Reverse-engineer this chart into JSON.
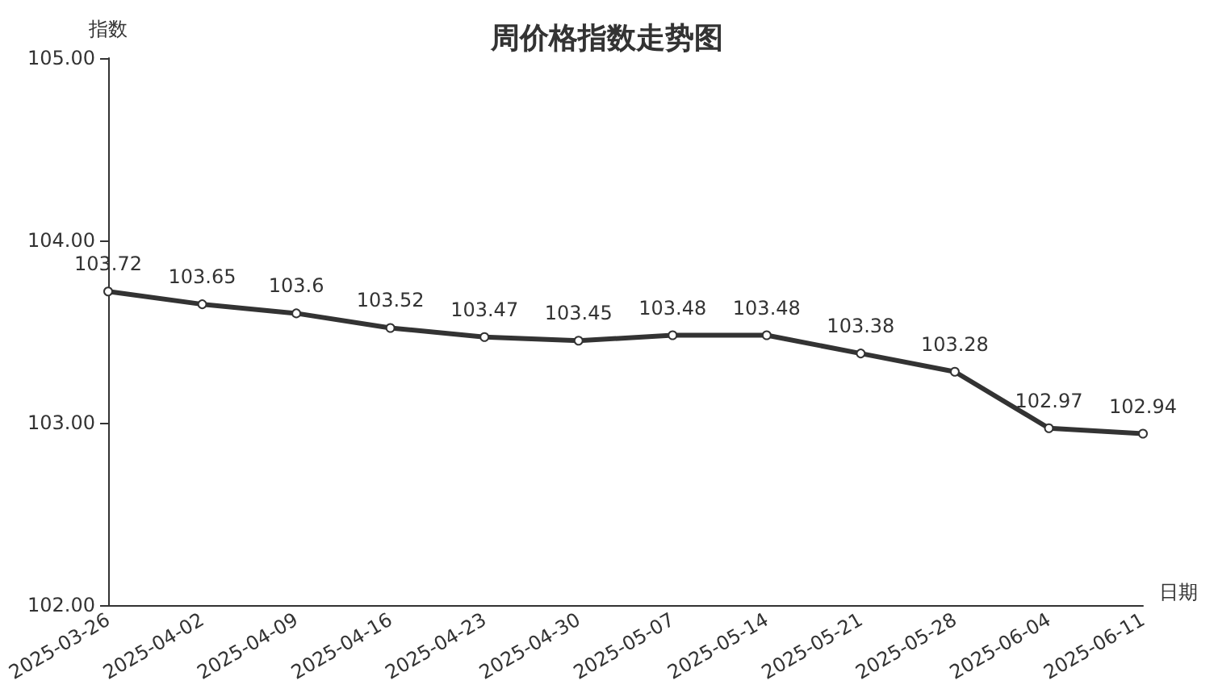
{
  "chart_data": {
    "type": "line",
    "title": "周价格指数走势图",
    "xlabel": "日期",
    "ylabel": "指数",
    "categories": [
      "2025-03-26",
      "2025-04-02",
      "2025-04-09",
      "2025-04-16",
      "2025-04-23",
      "2025-04-30",
      "2025-05-07",
      "2025-05-14",
      "2025-05-21",
      "2025-05-28",
      "2025-06-04",
      "2025-06-11"
    ],
    "series": [
      {
        "color": "#333333",
        "values": [
          103.72,
          103.65,
          103.6,
          103.52,
          103.47,
          103.45,
          103.48,
          103.48,
          103.38,
          103.28,
          102.97,
          102.94
        ]
      }
    ],
    "ylim": [
      102,
      105
    ],
    "yticks": [
      {
        "value": 102,
        "label": "102.00"
      },
      {
        "value": 103,
        "label": "103.00"
      },
      {
        "value": 104,
        "label": "104.00"
      },
      {
        "value": 105,
        "label": "105.00"
      }
    ],
    "data_labels": true,
    "grid": false,
    "marker": "circle",
    "line_style": "solid"
  }
}
